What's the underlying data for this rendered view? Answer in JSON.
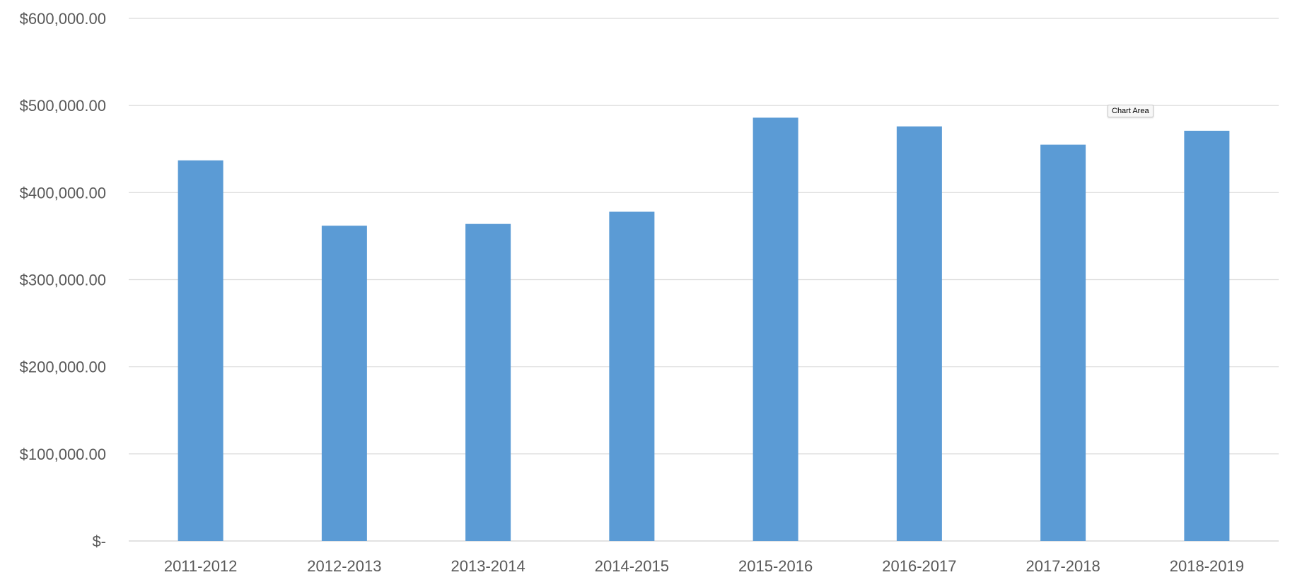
{
  "chart_data": {
    "type": "bar",
    "categories": [
      "2011-2012",
      "2012-2013",
      "2013-2014",
      "2014-2015",
      "2015-2016",
      "2016-2017",
      "2017-2018",
      "2018-2019"
    ],
    "values": [
      437000,
      362000,
      364000,
      378000,
      486000,
      476000,
      455000,
      471000
    ],
    "ylim": [
      0,
      600000
    ],
    "y_ticks": [
      0,
      100000,
      200000,
      300000,
      400000,
      500000,
      600000
    ],
    "y_tick_labels": [
      "$-",
      "$100,000.00",
      "$200,000.00",
      "$300,000.00",
      "$400,000.00",
      "$500,000.00",
      "$600,000.00"
    ],
    "title": "",
    "xlabel": "",
    "ylabel": "",
    "grid": true,
    "legend": "none",
    "bar_color": "#5b9bd5",
    "gridline_color": "#d9d9d9",
    "label_color": "#595959"
  },
  "tooltip": {
    "text": "Chart Area"
  }
}
